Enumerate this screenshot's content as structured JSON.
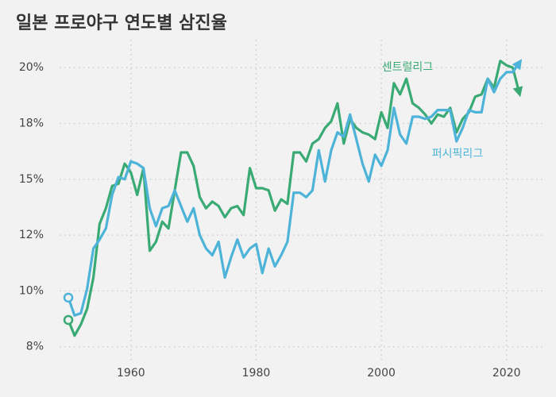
{
  "chart_data": {
    "type": "line",
    "title": "일본 프로야구 연도별 삼진율",
    "x": [
      1950,
      1951,
      1952,
      1953,
      1954,
      1955,
      1956,
      1957,
      1958,
      1959,
      1960,
      1961,
      1962,
      1963,
      1964,
      1965,
      1966,
      1967,
      1968,
      1969,
      1970,
      1971,
      1972,
      1973,
      1974,
      1975,
      1976,
      1977,
      1978,
      1979,
      1980,
      1981,
      1982,
      1983,
      1984,
      1985,
      1986,
      1987,
      1988,
      1989,
      1990,
      1991,
      1992,
      1993,
      1994,
      1995,
      1996,
      1997,
      1998,
      1999,
      2000,
      2001,
      2002,
      2003,
      2004,
      2005,
      2006,
      2007,
      2008,
      2009,
      2010,
      2011,
      2012,
      2013,
      2014,
      2015,
      2016,
      2017,
      2018,
      2019,
      2020,
      2021,
      2022
    ],
    "series": [
      {
        "name": "센트럴리그",
        "color": "#3aaa74",
        "values": [
          8.7,
          8.0,
          8.5,
          9.2,
          10.6,
          13.0,
          13.7,
          14.7,
          14.8,
          15.7,
          15.3,
          14.3,
          15.5,
          11.8,
          12.2,
          13.1,
          12.8,
          14.5,
          16.2,
          16.2,
          15.6,
          14.2,
          13.7,
          14.0,
          13.8,
          13.3,
          13.7,
          13.8,
          13.4,
          15.5,
          14.6,
          14.6,
          14.5,
          13.6,
          14.1,
          13.9,
          16.2,
          16.2,
          15.8,
          16.6,
          16.8,
          17.3,
          17.6,
          18.4,
          16.6,
          17.7,
          17.3,
          17.1,
          17.0,
          16.8,
          18.0,
          17.3,
          19.3,
          18.8,
          19.5,
          18.4,
          18.2,
          17.9,
          17.5,
          17.9,
          17.8,
          18.2,
          17.1,
          17.7,
          18.0,
          18.7,
          18.8,
          19.5,
          19.1,
          20.3,
          20.1,
          20.0,
          18.9
        ]
      },
      {
        "name": "퍼시픽리그",
        "color": "#4db3d8",
        "values": [
          9.7,
          8.9,
          9.0,
          10.1,
          11.9,
          12.3,
          12.8,
          14.3,
          15.1,
          15.0,
          15.8,
          15.7,
          15.5,
          13.7,
          12.9,
          13.7,
          13.8,
          14.5,
          13.8,
          13.1,
          13.7,
          12.5,
          11.9,
          11.6,
          12.2,
          10.6,
          11.5,
          12.3,
          11.5,
          11.9,
          12.1,
          10.8,
          11.9,
          11.1,
          11.6,
          12.2,
          14.4,
          14.4,
          14.2,
          14.5,
          16.3,
          14.9,
          16.3,
          17.1,
          16.9,
          17.9,
          16.8,
          15.7,
          14.9,
          16.1,
          15.6,
          16.3,
          18.2,
          17.0,
          16.6,
          17.8,
          17.8,
          17.7,
          17.8,
          18.1,
          18.1,
          18.1,
          16.7,
          17.3,
          18.1,
          18.0,
          18.0,
          19.5,
          18.9,
          19.5,
          19.8,
          19.8,
          20.2
        ]
      }
    ],
    "xlim": [
      1948.6,
      2026
    ],
    "xticks": [
      1960,
      1980,
      2000,
      2020
    ],
    "ylim": [
      6.85,
      21.25
    ],
    "yticks": [
      {
        "value": 7.5,
        "label": "8%"
      },
      {
        "value": 10,
        "label": "10%"
      },
      {
        "value": 12.5,
        "label": "12%"
      },
      {
        "value": 15,
        "label": "15%"
      },
      {
        "value": 17.5,
        "label": "18%"
      },
      {
        "value": 20,
        "label": "20%"
      }
    ],
    "grid": true
  }
}
